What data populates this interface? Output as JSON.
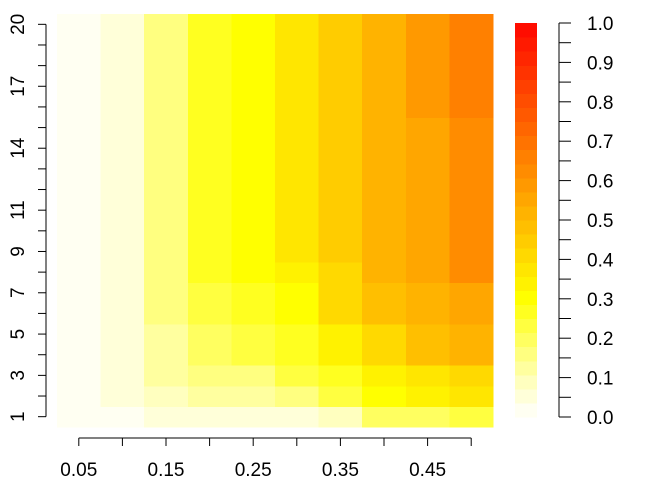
{
  "chart_data": {
    "type": "heatmap",
    "title": "",
    "xlabel": "",
    "ylabel": "",
    "x_centers": [
      0.05,
      0.1,
      0.15,
      0.2,
      0.25,
      0.3,
      0.35,
      0.4,
      0.45,
      0.5
    ],
    "x_ticks": [
      0.05,
      0.1,
      0.15,
      0.2,
      0.25,
      0.3,
      0.35,
      0.4,
      0.45,
      0.5
    ],
    "x_tick_labels": [
      "0.05",
      "",
      "0.15",
      "",
      "0.25",
      "",
      "0.35",
      "",
      "0.45",
      ""
    ],
    "y_centers": [
      1,
      2,
      3,
      4,
      5,
      6,
      7,
      8,
      9,
      10,
      11,
      12,
      13,
      14,
      15,
      16,
      17,
      18,
      19,
      20
    ],
    "y_ticks": [
      1,
      3,
      5,
      7,
      9,
      11,
      14,
      17,
      20
    ],
    "y_tick_labels": [
      "1",
      "3",
      "5",
      "7",
      "9",
      "11",
      "14",
      "17",
      "20"
    ],
    "y_scale": "log",
    "values": [
      [
        0.02,
        0.02,
        0.05,
        0.05,
        0.05,
        0.07,
        0.1,
        0.18,
        0.2,
        0.22
      ],
      [
        0.02,
        0.05,
        0.1,
        0.12,
        0.12,
        0.17,
        0.22,
        0.3,
        0.33,
        0.37
      ],
      [
        0.02,
        0.07,
        0.12,
        0.15,
        0.17,
        0.22,
        0.28,
        0.35,
        0.38,
        0.42
      ],
      [
        0.02,
        0.07,
        0.12,
        0.18,
        0.22,
        0.27,
        0.35,
        0.42,
        0.47,
        0.52
      ],
      [
        0.02,
        0.07,
        0.12,
        0.18,
        0.22,
        0.27,
        0.35,
        0.42,
        0.47,
        0.52
      ],
      [
        0.02,
        0.07,
        0.15,
        0.22,
        0.27,
        0.32,
        0.42,
        0.47,
        0.52,
        0.57
      ],
      [
        0.02,
        0.07,
        0.15,
        0.22,
        0.27,
        0.32,
        0.42,
        0.47,
        0.52,
        0.57
      ],
      [
        0.02,
        0.07,
        0.17,
        0.25,
        0.3,
        0.35,
        0.42,
        0.5,
        0.57,
        0.62
      ],
      [
        0.02,
        0.07,
        0.17,
        0.25,
        0.3,
        0.37,
        0.45,
        0.52,
        0.57,
        0.62
      ],
      [
        0.02,
        0.07,
        0.17,
        0.25,
        0.3,
        0.37,
        0.45,
        0.52,
        0.57,
        0.62
      ],
      [
        0.02,
        0.07,
        0.17,
        0.25,
        0.3,
        0.37,
        0.45,
        0.52,
        0.57,
        0.62
      ],
      [
        0.02,
        0.07,
        0.17,
        0.25,
        0.3,
        0.37,
        0.45,
        0.52,
        0.57,
        0.62
      ],
      [
        0.02,
        0.07,
        0.17,
        0.25,
        0.3,
        0.37,
        0.45,
        0.52,
        0.57,
        0.62
      ],
      [
        0.02,
        0.07,
        0.17,
        0.25,
        0.3,
        0.37,
        0.45,
        0.52,
        0.57,
        0.62
      ],
      [
        0.02,
        0.07,
        0.17,
        0.25,
        0.3,
        0.37,
        0.45,
        0.52,
        0.57,
        0.62
      ],
      [
        0.02,
        0.07,
        0.17,
        0.25,
        0.3,
        0.37,
        0.45,
        0.52,
        0.6,
        0.65
      ],
      [
        0.02,
        0.07,
        0.17,
        0.25,
        0.3,
        0.37,
        0.45,
        0.52,
        0.6,
        0.65
      ],
      [
        0.02,
        0.07,
        0.17,
        0.25,
        0.3,
        0.37,
        0.45,
        0.52,
        0.6,
        0.65
      ],
      [
        0.02,
        0.07,
        0.17,
        0.25,
        0.3,
        0.37,
        0.45,
        0.52,
        0.6,
        0.65
      ],
      [
        0.02,
        0.07,
        0.17,
        0.25,
        0.3,
        0.37,
        0.45,
        0.52,
        0.6,
        0.65
      ]
    ],
    "colorbar": {
      "range": [
        0,
        1
      ],
      "step": 0.05,
      "tick_values": [
        0.0,
        0.1,
        0.2,
        0.3,
        0.4,
        0.5,
        0.6,
        0.7,
        0.8,
        0.9,
        1.0
      ],
      "tick_labels": [
        "0.0",
        "0.1",
        "0.2",
        "0.3",
        "0.4",
        "0.5",
        "0.6",
        "0.7",
        "0.8",
        "0.9",
        "1.0"
      ],
      "colors": [
        "#FFFFF2",
        "#FFFFD9",
        "#FFFFBF",
        "#FFFF9F",
        "#FFFF80",
        "#FFFF60",
        "#FFFF40",
        "#FFFF20",
        "#FFFF00",
        "#FFF200",
        "#FFE600",
        "#FFD900",
        "#FFCC00",
        "#FFBF00",
        "#FFB300",
        "#FFA600",
        "#FF9900",
        "#FF8C00",
        "#FF8000",
        "#FF7300",
        "#FF6600",
        "#FF5900",
        "#FF4D00",
        "#FF4000",
        "#FF3300",
        "#FF2600",
        "#FF1A00",
        "#FF0D00"
      ]
    },
    "grid": false,
    "legend": "right"
  }
}
